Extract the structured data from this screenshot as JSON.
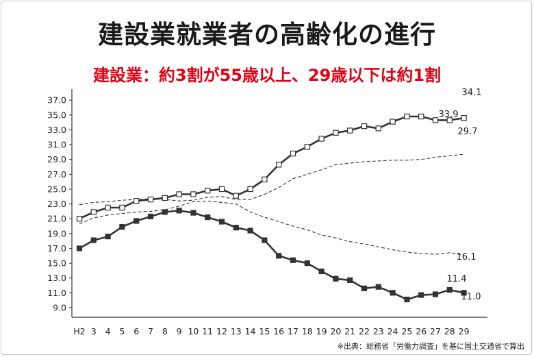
{
  "title": "建設業就業者の高齢化の進行",
  "subtitle": "建設業：約3割が55歳以上、29歳以下は約1割",
  "source": "※出典：総務省「労働力調査」を基に国土交通省で算出",
  "chart_data": {
    "type": "line",
    "title": "建設業就業者の高齢化の進行",
    "subtitle": "建設業：約3割が55歳以上、29歳以下は約1割",
    "xlabel": "",
    "ylabel": "",
    "categories": [
      "H2",
      "3",
      "4",
      "5",
      "6",
      "7",
      "8",
      "9",
      "10",
      "11",
      "12",
      "13",
      "14",
      "15",
      "16",
      "17",
      "18",
      "19",
      "20",
      "21",
      "22",
      "23",
      "24",
      "25",
      "26",
      "27",
      "28",
      "29"
    ],
    "y_ticks": [
      "9.0",
      "11.0",
      "13.0",
      "15.0",
      "17.0",
      "19.0",
      "21.0",
      "23.0",
      "25.0",
      "27.0",
      "29.0",
      "31.0",
      "33.0",
      "35.0",
      "37.0"
    ],
    "ylim": [
      7.7,
      38.5
    ],
    "grid": false,
    "series": [
      {
        "style": "solid-open-square",
        "values": [
          21.0,
          21.9,
          22.5,
          22.5,
          23.4,
          23.6,
          23.8,
          24.3,
          24.3,
          24.8,
          25.0,
          24.1,
          25.0,
          26.3,
          28.3,
          29.8,
          30.7,
          31.8,
          32.6,
          32.9,
          33.5,
          33.2,
          34.1,
          34.8,
          34.8,
          34.3,
          34.3,
          34.6
        ]
      },
      {
        "style": "dashed-upper",
        "values": [
          22.9,
          23.2,
          23.3,
          23.5,
          23.6,
          23.7,
          23.6,
          23.4,
          23.5,
          23.9,
          24.0,
          23.6,
          23.6,
          24.3,
          25.2,
          26.4,
          27.0,
          27.6,
          28.3,
          28.5,
          28.7,
          28.8,
          28.9,
          28.9,
          29.0,
          29.3,
          29.5,
          29.7
        ]
      },
      {
        "style": "dashed-lower",
        "values": [
          20.3,
          21.1,
          21.5,
          21.7,
          21.9,
          22.0,
          22.2,
          22.7,
          23.3,
          23.4,
          23.2,
          23.0,
          21.9,
          21.2,
          20.6,
          20.0,
          19.5,
          18.8,
          18.4,
          17.9,
          17.6,
          17.2,
          16.8,
          16.5,
          16.3,
          16.2,
          16.4,
          16.1
        ]
      },
      {
        "style": "solid-filled-square",
        "values": [
          17.0,
          18.1,
          18.6,
          19.9,
          20.7,
          21.3,
          21.9,
          22.1,
          21.8,
          21.2,
          20.6,
          19.8,
          19.4,
          18.1,
          16.0,
          15.4,
          15.0,
          13.9,
          12.9,
          12.7,
          11.6,
          11.8,
          11.0,
          10.1,
          10.7,
          10.8,
          11.4,
          11.0
        ]
      }
    ],
    "annotations": [
      "34.1",
      "33.9",
      "29.7",
      "16.1",
      "11.4",
      "11.0"
    ]
  }
}
